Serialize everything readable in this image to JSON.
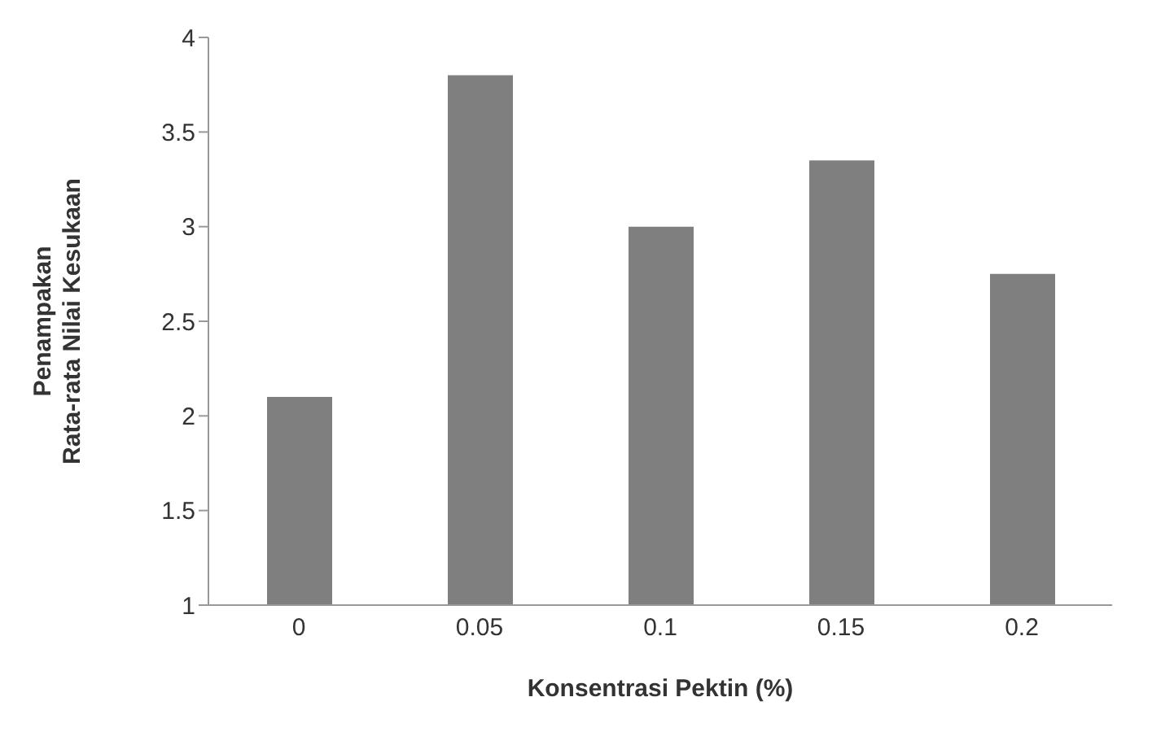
{
  "chart_data": {
    "type": "bar",
    "xlabel": "Konsentrasi Pektin (%)",
    "ylabel": "Penampakan\nRata-rata Nilai Kesukaan",
    "categories": [
      "0",
      "0.05",
      "0.1",
      "0.15",
      "0.2"
    ],
    "values": [
      2.1,
      3.8,
      3.0,
      3.35,
      2.75
    ],
    "color": "#7f7f7f",
    "ylim": [
      1,
      4
    ],
    "yticks": [
      1,
      1.5,
      2,
      2.5,
      3,
      3.5,
      4
    ],
    "grid": false,
    "legend": false
  }
}
